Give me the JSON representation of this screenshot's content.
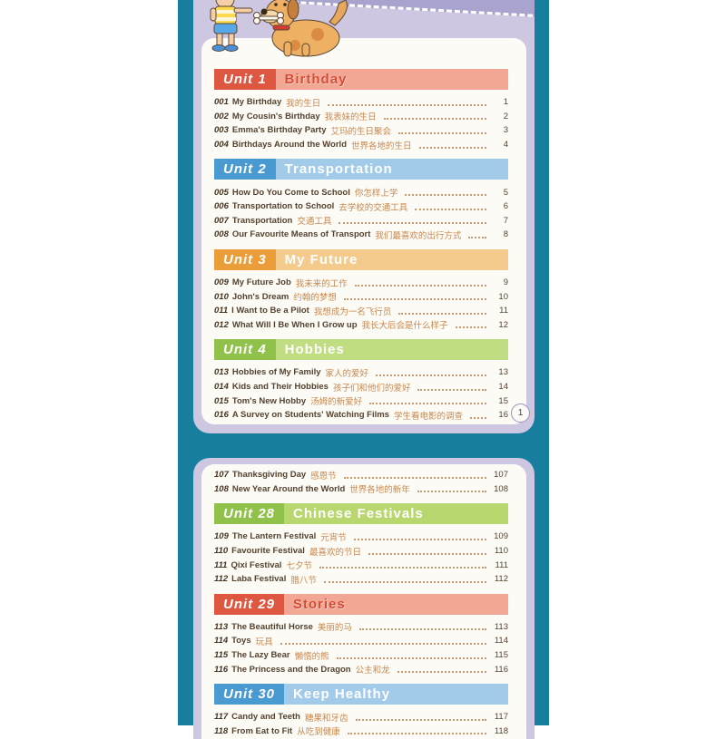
{
  "scene": {
    "page_badge": "1",
    "colors": {
      "background": "#ffffff",
      "teal_band": "#177e9e",
      "card_lavender": "#cdc7e2",
      "diagonal_stripe": "#a9a4ce",
      "page_paper": "#fdfbf6",
      "entry_text": "#54422f",
      "entry_chinese": "#c8884e"
    }
  },
  "illustration": {
    "description": "boy-pointing-at-dog-with-bone"
  },
  "pages": [
    {
      "name": "contents-page-1",
      "leading_entries": [],
      "units": [
        {
          "label": "Unit 1",
          "title": "Birthday",
          "box_color": "#de5740",
          "banner_color": "#f2a694",
          "title_color": "#d64a31",
          "entries": [
            {
              "num": "001",
              "en": "My Birthday",
              "zh": "我的生日",
              "page": "1"
            },
            {
              "num": "002",
              "en": "My Cousin's Birthday",
              "zh": "我表妹的生日",
              "page": "2"
            },
            {
              "num": "003",
              "en": "Emma's Birthday Party",
              "zh": "艾玛的生日聚会",
              "page": "3"
            },
            {
              "num": "004",
              "en": "Birthdays Around the World",
              "zh": "世界各地的生日",
              "page": "4"
            }
          ]
        },
        {
          "label": "Unit 2",
          "title": "Transportation",
          "box_color": "#4a9ad2",
          "banner_color": "#a2cbea",
          "title_color": "#ffffff",
          "entries": [
            {
              "num": "005",
              "en": "How Do You Come to School",
              "zh": "你怎样上学",
              "page": "5"
            },
            {
              "num": "006",
              "en": "Transportation to School",
              "zh": "去学校的交通工具",
              "page": "6"
            },
            {
              "num": "007",
              "en": "Transportation",
              "zh": "交通工具",
              "page": "7"
            },
            {
              "num": "008",
              "en": "Our Favourite Means of Transport",
              "zh": "我们最喜欢的出行方式",
              "page": "8"
            }
          ]
        },
        {
          "label": "Unit 3",
          "title": "My Future",
          "box_color": "#eb9d3a",
          "banner_color": "#f5ca8d",
          "title_color": "#ffffff",
          "entries": [
            {
              "num": "009",
              "en": "My Future Job",
              "zh": "我未来的工作",
              "page": "9"
            },
            {
              "num": "010",
              "en": "John's Dream",
              "zh": "约翰的梦想",
              "page": "10"
            },
            {
              "num": "011",
              "en": "I Want to Be a Pilot",
              "zh": "我想成为一名飞行员",
              "page": "11"
            },
            {
              "num": "012",
              "en": "What Will I Be When I Grow up",
              "zh": "我长大后会是什么样子",
              "page": "12"
            }
          ]
        },
        {
          "label": "Unit 4",
          "title": "Hobbies",
          "box_color": "#90c14a",
          "banner_color": "#c0dd82",
          "title_color": "#ffffff",
          "entries": [
            {
              "num": "013",
              "en": "Hobbies of My Family",
              "zh": "家人的爱好",
              "page": "13"
            },
            {
              "num": "014",
              "en": "Kids and Their Hobbies",
              "zh": "孩子们和他们的爱好",
              "page": "14"
            },
            {
              "num": "015",
              "en": "Tom's New Hobby",
              "zh": "汤姆的新爱好",
              "page": "15"
            },
            {
              "num": "016",
              "en": "A Survey on Students' Watching Films",
              "zh": "学生看电影的调查",
              "page": "16"
            }
          ]
        }
      ]
    },
    {
      "name": "contents-page-2",
      "leading_entries": [
        {
          "num": "107",
          "en": "Thanksgiving Day",
          "zh": "感恩节",
          "page": "107"
        },
        {
          "num": "108",
          "en": "New Year Around the World",
          "zh": "世界各地的新年",
          "page": "108"
        }
      ],
      "units": [
        {
          "label": "Unit 28",
          "title": "Chinese Festivals",
          "box_color": "#90c14a",
          "banner_color": "#b8d76e",
          "title_color": "#ffffff",
          "entries": [
            {
              "num": "109",
              "en": "The Lantern Festival",
              "zh": "元宵节",
              "page": "109"
            },
            {
              "num": "110",
              "en": "Favourite Festival",
              "zh": "最喜欢的节日",
              "page": "110"
            },
            {
              "num": "111",
              "en": "Qixi Festival",
              "zh": "七夕节",
              "page": "111"
            },
            {
              "num": "112",
              "en": "Laba Festival",
              "zh": "腊八节",
              "page": "112"
            }
          ]
        },
        {
          "label": "Unit 29",
          "title": "Stories",
          "box_color": "#de5740",
          "banner_color": "#f2a694",
          "title_color": "#d64a31",
          "entries": [
            {
              "num": "113",
              "en": "The Beautiful Horse",
              "zh": "美丽的马",
              "page": "113"
            },
            {
              "num": "114",
              "en": "Toys",
              "zh": "玩具",
              "page": "114"
            },
            {
              "num": "115",
              "en": "The Lazy Bear",
              "zh": "懒惰的熊",
              "page": "115"
            },
            {
              "num": "116",
              "en": "The Princess and the Dragon",
              "zh": "公主和龙",
              "page": "116"
            }
          ]
        },
        {
          "label": "Unit 30",
          "title": "Keep Healthy",
          "box_color": "#4a9ad2",
          "banner_color": "#a2cbea",
          "title_color": "#ffffff",
          "entries": [
            {
              "num": "117",
              "en": "Candy and Teeth",
              "zh": "糖果和牙齿",
              "page": "117"
            },
            {
              "num": "118",
              "en": "From Eat to Fit",
              "zh": "从吃到健康",
              "page": "118"
            }
          ]
        }
      ]
    }
  ]
}
